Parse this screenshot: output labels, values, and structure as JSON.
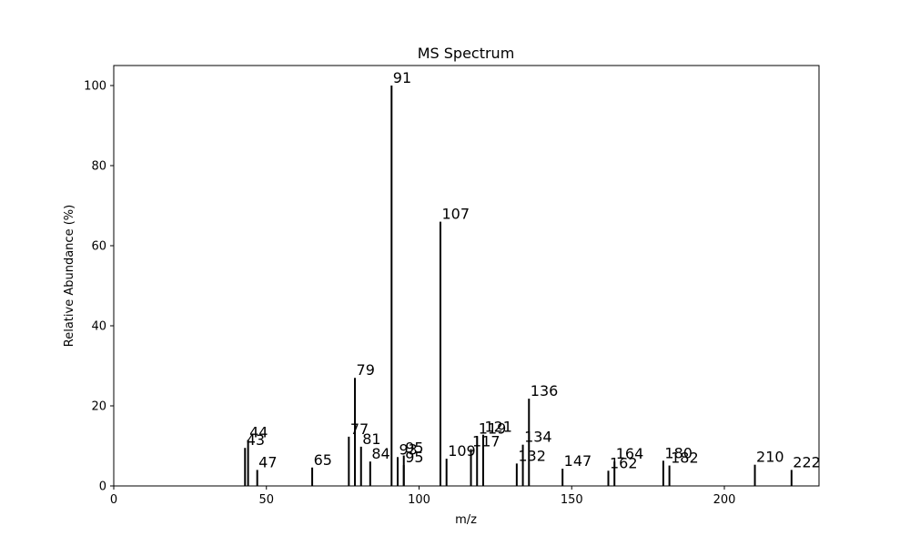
{
  "chart_data": {
    "type": "bar",
    "title": "MS Spectrum",
    "xlabel": "m/z",
    "ylabel": "Relative Abundance (%)",
    "xlim": [
      0,
      231
    ],
    "ylim": [
      0,
      105
    ],
    "xticks": [
      0,
      50,
      100,
      150,
      200
    ],
    "yticks": [
      0,
      20,
      40,
      60,
      80,
      100
    ],
    "grid": false,
    "peaks": [
      {
        "x": 43,
        "y": 9.5,
        "label": "43"
      },
      {
        "x": 44,
        "y": 11.5,
        "label": "44"
      },
      {
        "x": 47,
        "y": 4,
        "label": "47"
      },
      {
        "x": 65,
        "y": 4.6,
        "label": "65"
      },
      {
        "x": 77,
        "y": 12.3,
        "label": "77"
      },
      {
        "x": 79,
        "y": 27,
        "label": "79"
      },
      {
        "x": 81,
        "y": 9.8,
        "label": "81"
      },
      {
        "x": 84,
        "y": 6.1,
        "label": "84"
      },
      {
        "x": 91,
        "y": 100,
        "label": "91"
      },
      {
        "x": 93,
        "y": 7.2,
        "label": "93"
      },
      {
        "x": 95,
        "y": 7.6,
        "label": "95"
      },
      {
        "x": 95,
        "y": 5.2,
        "label": "95"
      },
      {
        "x": 107,
        "y": 66,
        "label": "107"
      },
      {
        "x": 109,
        "y": 6.8,
        "label": "109"
      },
      {
        "x": 117,
        "y": 9.2,
        "label": "117"
      },
      {
        "x": 119,
        "y": 12.4,
        "label": "119"
      },
      {
        "x": 121,
        "y": 12.8,
        "label": "121"
      },
      {
        "x": 132,
        "y": 5.6,
        "label": "132"
      },
      {
        "x": 134,
        "y": 10.3,
        "label": "134"
      },
      {
        "x": 136,
        "y": 21.8,
        "label": "136"
      },
      {
        "x": 147,
        "y": 4.3,
        "label": "147"
      },
      {
        "x": 162,
        "y": 3.8,
        "label": "162"
      },
      {
        "x": 164,
        "y": 6.1,
        "label": "164"
      },
      {
        "x": 180,
        "y": 6.3,
        "label": "180"
      },
      {
        "x": 182,
        "y": 5.1,
        "label": "182"
      },
      {
        "x": 210,
        "y": 5.3,
        "label": "210"
      },
      {
        "x": 222,
        "y": 4,
        "label": "222"
      }
    ],
    "colors": {
      "bar": "#000000",
      "axis": "#000000",
      "background": "#ffffff"
    }
  }
}
